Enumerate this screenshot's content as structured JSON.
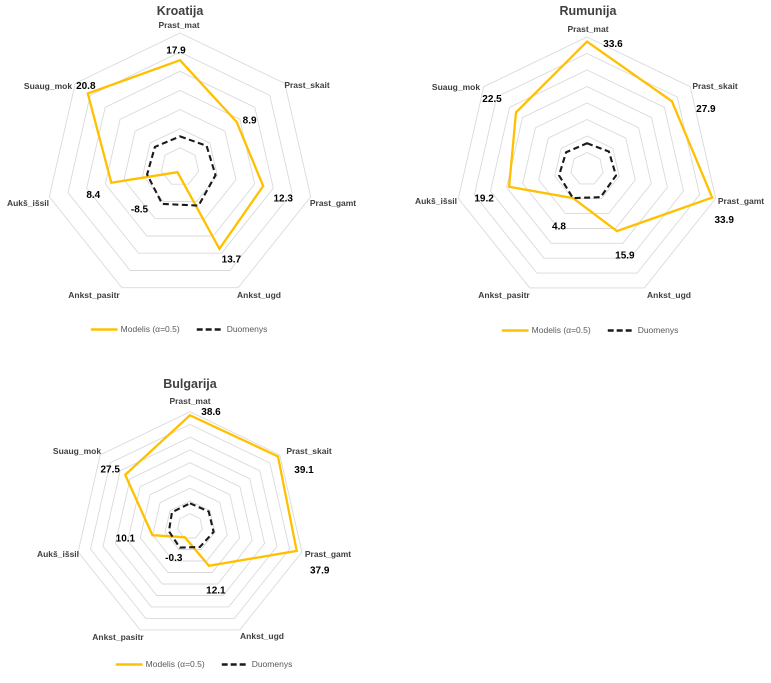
{
  "page": {
    "background": "#FFFFFF"
  },
  "colors": {
    "modelis_line": "#FFC000",
    "duomenys_line": "#000000",
    "grid": "#DADADA",
    "title_text": "#404040",
    "legend_text": "#595959"
  },
  "chart_data": [
    {
      "type": "radar",
      "title": "Kroatija",
      "categories": [
        "Prast_mat",
        "Prast_skait",
        "Prast_gamt",
        "Ankst_ugd",
        "Ankst_pasitr",
        "Aukš_išsil",
        "Suaug_mok"
      ],
      "series": [
        {
          "name": "Modelis (α=0.5)",
          "color": "#FFC000",
          "line_style": "solid",
          "values": [
            17.9,
            8.9,
            12.3,
            13.7,
            -8.5,
            8.4,
            20.8
          ],
          "data_labels": [
            "17.9",
            "8.9",
            "12.3",
            "13.7",
            "-8.5",
            "8.4",
            "20.8"
          ]
        },
        {
          "name": "Duomenys",
          "color": "#1a1a1a",
          "line_style": "dashed",
          "values": [
            -2.0,
            -1.1,
            -0.5,
            1.2,
            0.7,
            -1.2,
            -1.6
          ],
          "values_estimated_from_gridlines": true
        }
      ],
      "axis": {
        "min": -10,
        "max": 25,
        "step": 5
      },
      "grid": "concentric-heptagons",
      "legend_position": "bottom"
    },
    {
      "type": "radar",
      "title": "Rumunija",
      "categories": [
        "Prast_mat",
        "Prast_skait",
        "Prast_gamt",
        "Ankst_ugd",
        "Ankst_pasitr",
        "Aukš_išsil",
        "Suaug_mok"
      ],
      "series": [
        {
          "name": "Modelis (α=0.5)",
          "color": "#FFC000",
          "line_style": "solid",
          "values": [
            33.6,
            27.9,
            33.9,
            15.9,
            4.8,
            19.2,
            22.5
          ],
          "data_labels": [
            "33.6",
            "27.9",
            "33.9",
            "15.9",
            "4.8",
            "19.2",
            "22.5"
          ]
        },
        {
          "name": "Duomenys",
          "color": "#1a1a1a",
          "line_style": "dashed",
          "values": [
            2.8,
            3.5,
            4.0,
            4.5,
            4.8,
            3.7,
            3.1
          ],
          "values_estimated_from_gridlines": true
        }
      ],
      "axis": {
        "min": -5,
        "max": 35,
        "step": 5
      },
      "grid": "concentric-heptagons",
      "legend_position": "bottom"
    },
    {
      "type": "radar",
      "title": "Bulgarija",
      "categories": [
        "Prast_mat",
        "Prast_skait",
        "Prast_gamt",
        "Ankst_ugd",
        "Ankst_pasitr",
        "Aukš_išsil",
        "Suaug_mok"
      ],
      "series": [
        {
          "name": "Modelis (α=0.5)",
          "color": "#FFC000",
          "line_style": "solid",
          "values": [
            38.6,
            39.1,
            37.9,
            12.1,
            -0.3,
            10.1,
            27.5
          ],
          "data_labels": [
            "38.6",
            "39.1",
            "37.9",
            "12.1",
            "-0.3",
            "10.1",
            "27.5"
          ]
        },
        {
          "name": "Duomenys",
          "color": "#1a1a1a",
          "line_style": "dashed",
          "values": [
            4.1,
            4.4,
            4.5,
            3.9,
            4.2,
            3.5,
            4.0
          ],
          "values_estimated_from_gridlines": true
        }
      ],
      "axis": {
        "min": -5,
        "max": 40,
        "step": 5
      },
      "grid": "concentric-heptagons",
      "legend_position": "bottom"
    }
  ]
}
